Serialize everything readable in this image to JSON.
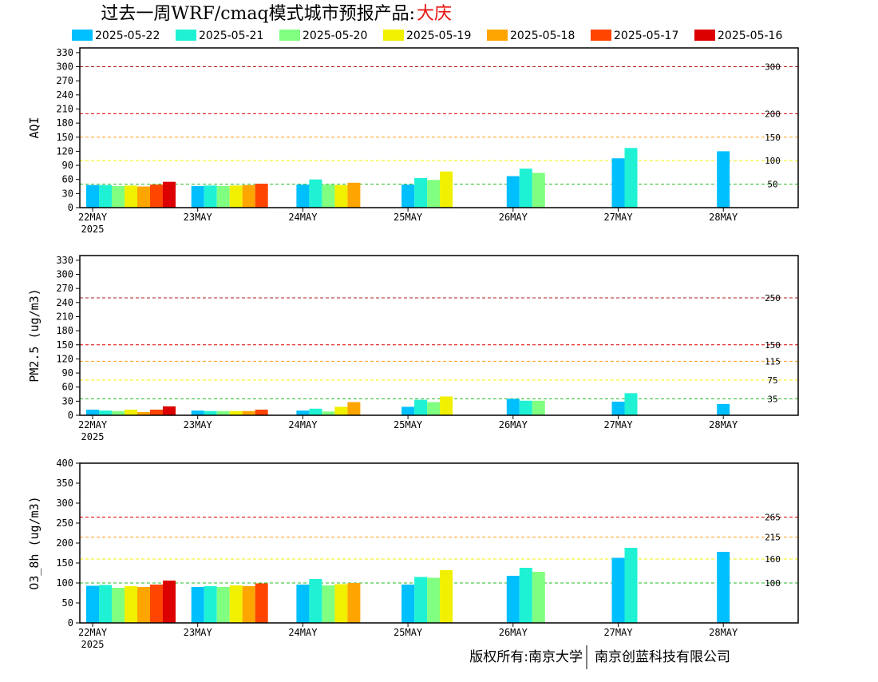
{
  "title": {
    "main": "过去一周WRF/cmaq模式城市预报产品:",
    "city": "大庆"
  },
  "footer": {
    "left": "版权所有:南京大学",
    "right": "南京创蓝科技有限公司"
  },
  "colors": {
    "threshold_dark": "#b22222",
    "threshold_red": "#e00000",
    "threshold_orange": "#ff9f1c",
    "threshold_yellow": "#f2f200",
    "threshold_green": "#22bb22"
  },
  "chart_data": [
    {
      "type": "bar",
      "title": "过去一周WRF/cmaq模式城市预报产品:大庆",
      "ylabel": "AQI",
      "ylim": [
        0,
        340
      ],
      "yticks": [
        0,
        30,
        60,
        90,
        120,
        150,
        180,
        210,
        240,
        270,
        300,
        330
      ],
      "categories": [
        "22MAY",
        "23MAY",
        "24MAY",
        "25MAY",
        "26MAY",
        "27MAY",
        "28MAY"
      ],
      "first_category_sublabel": "2025",
      "legend_placement": "top",
      "thresholds": [
        {
          "value": 300,
          "label": "300",
          "color": "#b22222"
        },
        {
          "value": 200,
          "label": "200",
          "color": "#e00000"
        },
        {
          "value": 150,
          "label": "150",
          "color": "#ff9f1c"
        },
        {
          "value": 100,
          "label": "100",
          "color": "#f2f200"
        },
        {
          "value": 50,
          "label": "50",
          "color": "#22bb22"
        }
      ],
      "series": [
        {
          "name": "2025-05-22",
          "color": "#00bfff",
          "values": [
            48,
            46,
            49,
            49,
            67,
            105,
            120
          ]
        },
        {
          "name": "2025-05-21",
          "color": "#1ff2d4",
          "values": [
            48,
            47,
            60,
            63,
            83,
            127,
            null
          ]
        },
        {
          "name": "2025-05-20",
          "color": "#80ff80",
          "values": [
            46,
            46,
            49,
            59,
            74,
            null,
            null
          ]
        },
        {
          "name": "2025-05-19",
          "color": "#f0f000",
          "values": [
            47,
            47,
            48,
            77,
            null,
            null,
            null
          ]
        },
        {
          "name": "2025-05-18",
          "color": "#ffa500",
          "values": [
            45,
            48,
            53,
            null,
            null,
            null,
            null
          ]
        },
        {
          "name": "2025-05-17",
          "color": "#ff4500",
          "values": [
            49,
            51,
            null,
            null,
            null,
            null,
            null
          ]
        },
        {
          "name": "2025-05-16",
          "color": "#dd0000",
          "values": [
            55,
            null,
            null,
            null,
            null,
            null,
            null
          ]
        }
      ]
    },
    {
      "type": "bar",
      "ylabel": "PM2.5 (ug/m3)",
      "ylim": [
        0,
        340
      ],
      "yticks": [
        0,
        30,
        60,
        90,
        120,
        150,
        180,
        210,
        240,
        270,
        300,
        330
      ],
      "categories": [
        "22MAY",
        "23MAY",
        "24MAY",
        "25MAY",
        "26MAY",
        "27MAY",
        "28MAY"
      ],
      "first_category_sublabel": "2025",
      "thresholds": [
        {
          "value": 250,
          "label": "250",
          "color": "#b22222"
        },
        {
          "value": 150,
          "label": "150",
          "color": "#e00000"
        },
        {
          "value": 115,
          "label": "115",
          "color": "#ff9f1c"
        },
        {
          "value": 75,
          "label": "75",
          "color": "#f2f200"
        },
        {
          "value": 35,
          "label": "35",
          "color": "#22bb22"
        }
      ],
      "series": [
        {
          "name": "2025-05-22",
          "color": "#00bfff",
          "values": [
            12,
            10,
            10,
            18,
            35,
            29,
            24
          ]
        },
        {
          "name": "2025-05-21",
          "color": "#1ff2d4",
          "values": [
            10,
            9,
            14,
            33,
            31,
            47,
            null
          ]
        },
        {
          "name": "2025-05-20",
          "color": "#80ff80",
          "values": [
            9,
            9,
            8,
            28,
            31,
            null,
            null
          ]
        },
        {
          "name": "2025-05-19",
          "color": "#f0f000",
          "values": [
            12,
            9,
            18,
            40,
            null,
            null,
            null
          ]
        },
        {
          "name": "2025-05-18",
          "color": "#ffa500",
          "values": [
            7,
            9,
            28,
            null,
            null,
            null,
            null
          ]
        },
        {
          "name": "2025-05-17",
          "color": "#ff4500",
          "values": [
            12,
            12,
            null,
            null,
            null,
            null,
            null
          ]
        },
        {
          "name": "2025-05-16",
          "color": "#dd0000",
          "values": [
            19,
            null,
            null,
            null,
            null,
            null,
            null
          ]
        }
      ]
    },
    {
      "type": "bar",
      "ylabel": "O3_8h (ug/m3)",
      "ylim": [
        0,
        400
      ],
      "yticks": [
        0,
        50,
        100,
        150,
        200,
        250,
        300,
        350,
        400
      ],
      "categories": [
        "22MAY",
        "23MAY",
        "24MAY",
        "25MAY",
        "26MAY",
        "27MAY",
        "28MAY"
      ],
      "first_category_sublabel": "2025",
      "thresholds": [
        {
          "value": 265,
          "label": "265",
          "color": "#e00000"
        },
        {
          "value": 215,
          "label": "215",
          "color": "#ff9f1c"
        },
        {
          "value": 160,
          "label": "160",
          "color": "#f2f200"
        },
        {
          "value": 100,
          "label": "100",
          "color": "#22bb22"
        }
      ],
      "series": [
        {
          "name": "2025-05-22",
          "color": "#00bfff",
          "values": [
            93,
            90,
            96,
            96,
            118,
            163,
            178
          ]
        },
        {
          "name": "2025-05-21",
          "color": "#1ff2d4",
          "values": [
            95,
            92,
            110,
            115,
            138,
            188,
            null
          ]
        },
        {
          "name": "2025-05-20",
          "color": "#80ff80",
          "values": [
            88,
            90,
            94,
            113,
            128,
            null,
            null
          ]
        },
        {
          "name": "2025-05-19",
          "color": "#f0f000",
          "values": [
            92,
            94,
            97,
            132,
            null,
            null,
            null
          ]
        },
        {
          "name": "2025-05-18",
          "color": "#ffa500",
          "values": [
            90,
            92,
            100,
            null,
            null,
            null,
            null
          ]
        },
        {
          "name": "2025-05-17",
          "color": "#ff4500",
          "values": [
            96,
            99,
            null,
            null,
            null,
            null,
            null
          ]
        },
        {
          "name": "2025-05-16",
          "color": "#dd0000",
          "values": [
            106,
            null,
            null,
            null,
            null,
            null,
            null
          ]
        }
      ]
    }
  ]
}
